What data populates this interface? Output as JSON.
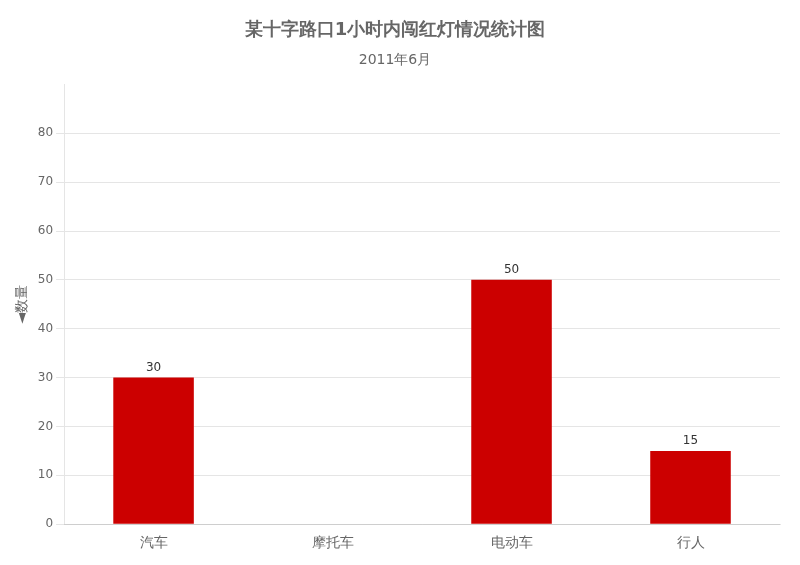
{
  "chart_data": {
    "type": "bar",
    "title": "某十字路口1小时内闯红灯情况统计图",
    "subtitle": "2011年6月",
    "ylabel": "◄数量",
    "categories": [
      "汽车",
      "摩托车",
      "电动车",
      "行人"
    ],
    "values": [
      30,
      0,
      50,
      15
    ],
    "value_labels": [
      "30",
      null,
      "50",
      "15"
    ],
    "data_labels": true,
    "color": "#cc0000",
    "ylim": [
      0,
      90
    ],
    "yticks": [
      0,
      10,
      20,
      30,
      40,
      50,
      60,
      70,
      80
    ],
    "grid": true
  }
}
